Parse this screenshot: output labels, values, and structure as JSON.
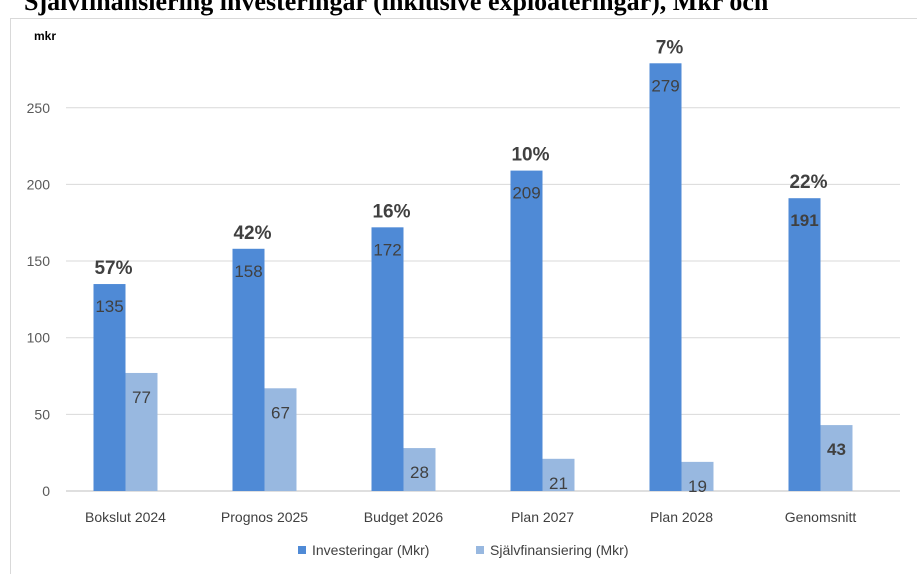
{
  "page_title": "Självfinansiering investeringar (inklusive exploateringar), Mkr och",
  "chart_data": {
    "type": "bar",
    "unit_label": "mkr",
    "categories": [
      "Bokslut 2024",
      "Prognos 2025",
      "Budget 2026",
      "Plan 2027",
      "Plan 2028",
      "Genomsnitt"
    ],
    "series": [
      {
        "name": "Investeringar (Mkr)",
        "values": [
          135,
          158,
          172,
          209,
          279,
          191
        ],
        "color": "#4f8ad6"
      },
      {
        "name": "Självfinansiering (Mkr)",
        "values": [
          77,
          67,
          28,
          21,
          19,
          43
        ],
        "color": "#98b8e0"
      }
    ],
    "percent_labels": [
      "57%",
      "42%",
      "16%",
      "10%",
      "7%",
      "22%"
    ],
    "yticks": [
      0,
      50,
      100,
      150,
      200,
      250
    ],
    "ylim": [
      0,
      295
    ],
    "grid": true,
    "legend_position": "bottom"
  }
}
